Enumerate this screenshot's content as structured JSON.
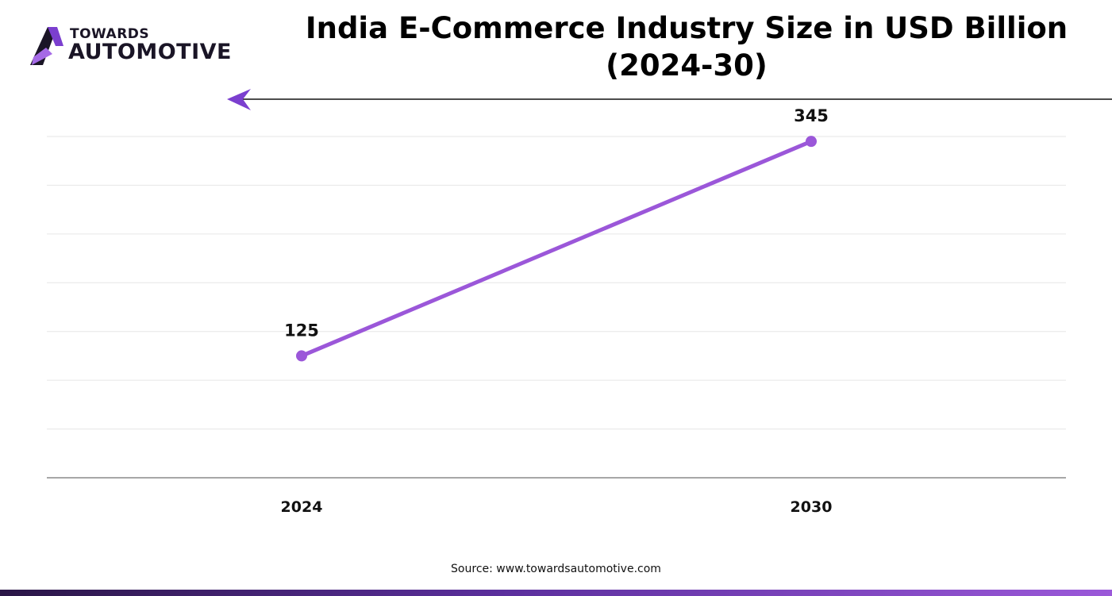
{
  "brand": {
    "line1": "TOWARDS",
    "line2": "AUTOMOTIVE",
    "logo_icon": "stylized-a-logo-icon",
    "colors": {
      "dark": "#1a1526",
      "purple": "#7b3fcf",
      "light_purple": "#a56ae6"
    }
  },
  "title_arrow_icon": "left-arrow-icon",
  "colors": {
    "line": "#9b57d9",
    "marker": "#9b57d9",
    "grid": "#e6e6e6",
    "axis": "#8a8a8a",
    "text": "#111111",
    "bottom_bar_start": "#2a1646",
    "bottom_bar_end": "#9b59d9"
  },
  "chart_data": {
    "type": "line",
    "title": "India E-Commerce Industry Size in USD Billion (2024-30)",
    "xlabel": "",
    "ylabel": "",
    "categories": [
      "2024",
      "2030"
    ],
    "series": [
      {
        "values": [
          125,
          345
        ]
      }
    ],
    "data_labels": [
      "125",
      "345"
    ],
    "ylim": [
      0,
      350
    ],
    "y_tick_labels_shown": false,
    "grid": true,
    "legend": "none"
  },
  "source": "Source: www.towardsautomotive.com"
}
